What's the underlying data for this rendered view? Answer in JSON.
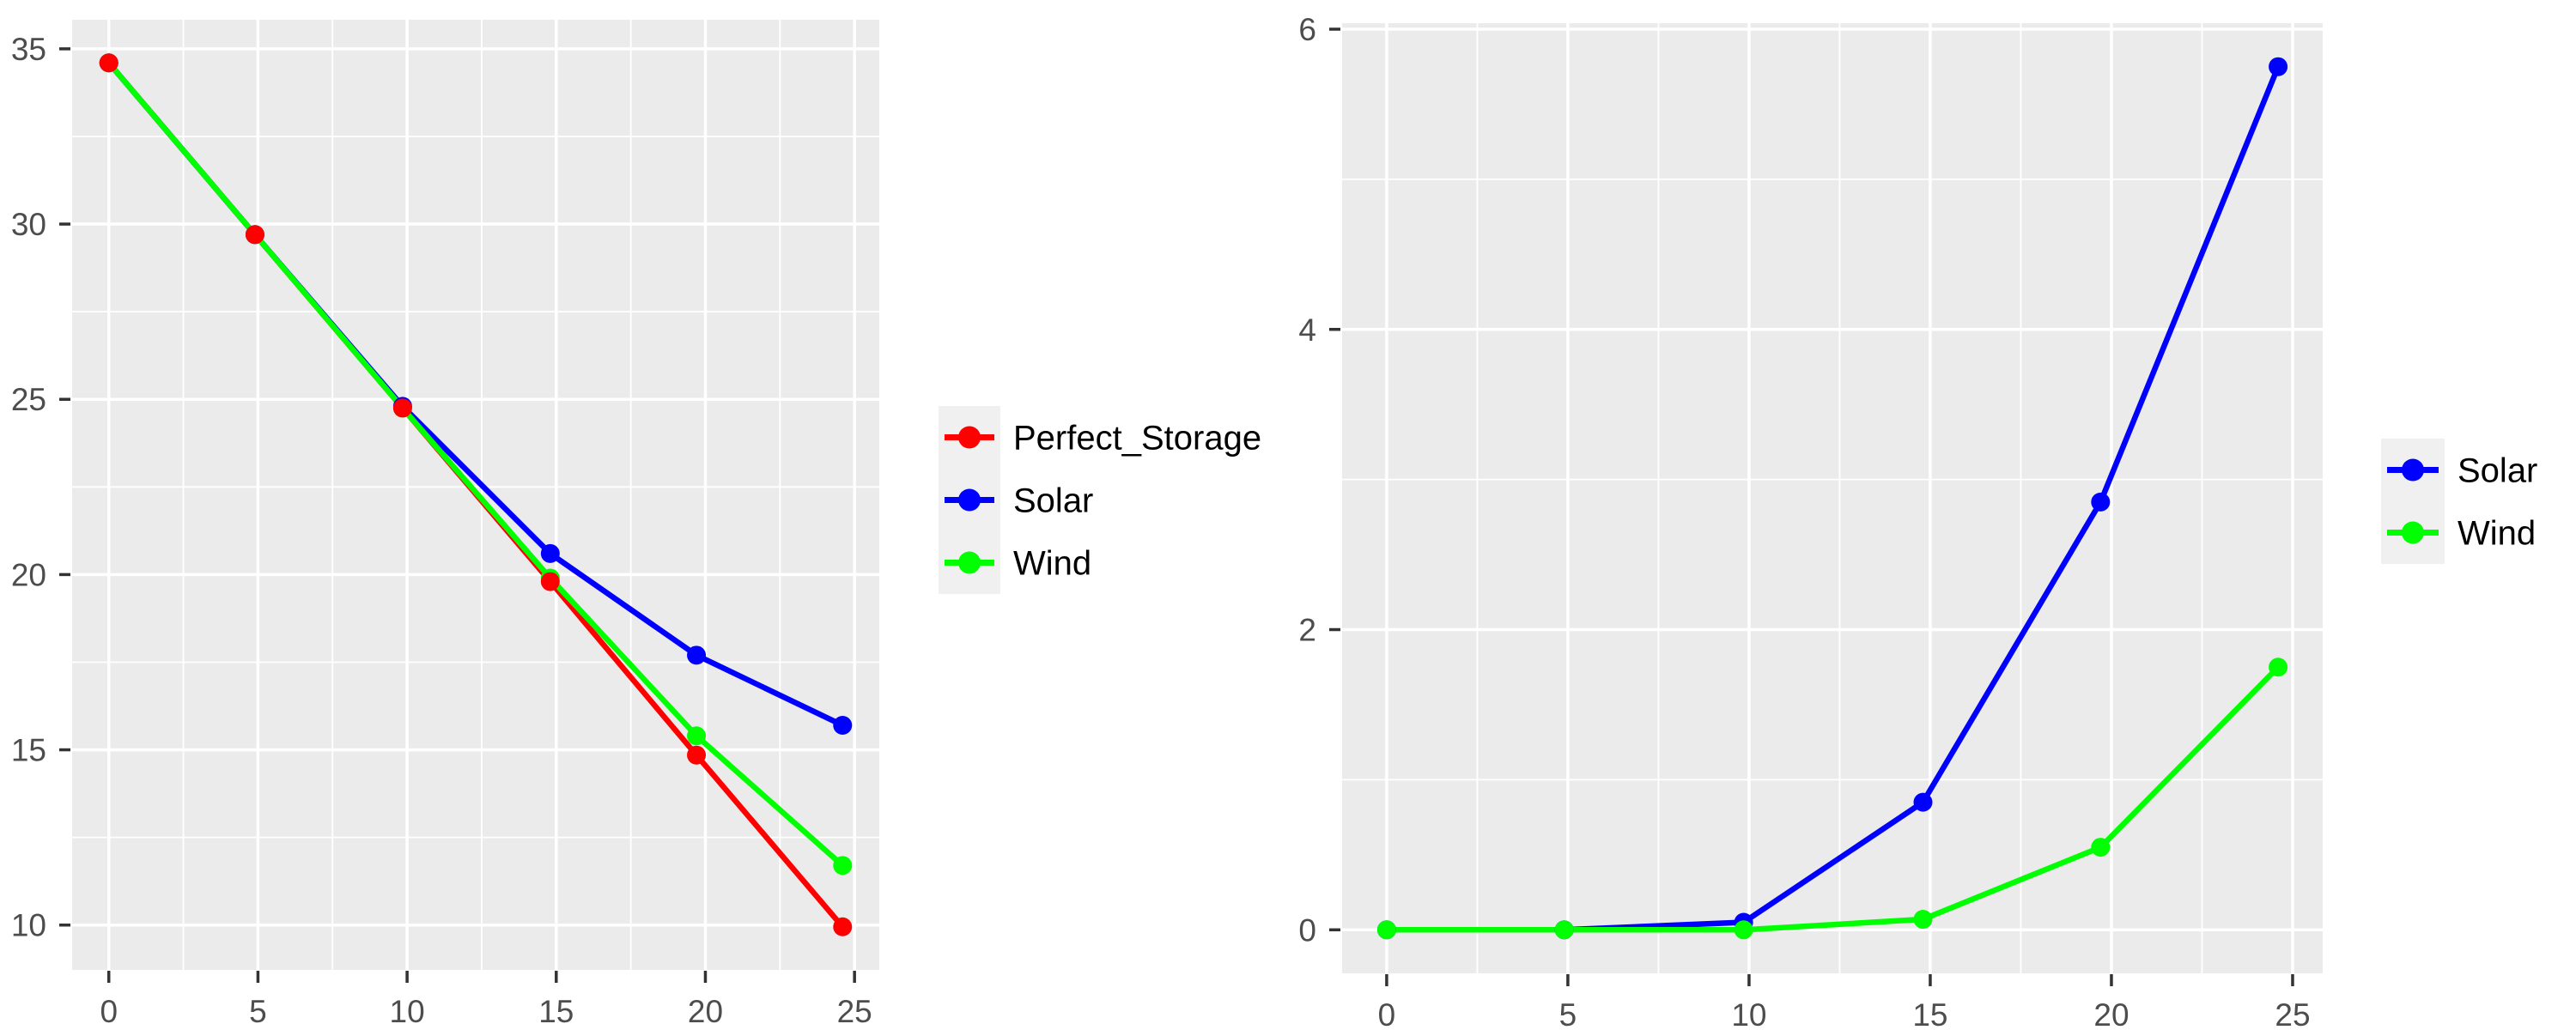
{
  "figure": {
    "title": "",
    "background": "#FFFFFF"
  },
  "theme": {
    "panel_bg": "#EBEBEB",
    "grid_color": "#FFFFFF",
    "tick_mark_color": "#333333",
    "axis_text_color": "#4D4D4D",
    "legend_text_color": "#000000",
    "legend_key_bg": "#F0F0F0"
  },
  "chart_data": [
    {
      "type": "line",
      "title": "",
      "xlabel": "",
      "ylabel": "",
      "x": [
        0,
        4.9,
        9.85,
        14.8,
        19.7,
        24.6
      ],
      "series": [
        {
          "name": "Perfect_Storage",
          "color": "#FF0000",
          "values": [
            34.6,
            29.7,
            24.75,
            19.8,
            14.85,
            9.95
          ]
        },
        {
          "name": "Solar",
          "color": "#0000FF",
          "values": [
            34.6,
            29.7,
            24.8,
            20.6,
            17.7,
            15.7
          ]
        },
        {
          "name": "Wind",
          "color": "#00FF00",
          "values": [
            34.6,
            29.7,
            24.75,
            19.9,
            15.4,
            11.7
          ]
        }
      ],
      "xticks": [
        0,
        5,
        10,
        15,
        20,
        25
      ],
      "yticks": [
        10,
        15,
        20,
        25,
        30,
        35
      ],
      "xlim": [
        -1.23,
        25.83
      ],
      "ylim": [
        8.72,
        35.83
      ],
      "grid": true,
      "legend_position": "right",
      "legend_labels": [
        "Perfect_Storage",
        "Solar",
        "Wind"
      ]
    },
    {
      "type": "line",
      "title": "",
      "xlabel": "",
      "ylabel": "",
      "x": [
        0,
        4.9,
        9.85,
        14.8,
        19.7,
        24.6
      ],
      "series": [
        {
          "name": "Solar",
          "color": "#0000FF",
          "values": [
            0,
            0,
            0.05,
            0.85,
            2.85,
            5.75
          ]
        },
        {
          "name": "Wind",
          "color": "#00FF00",
          "values": [
            0,
            0,
            0,
            0.07,
            0.55,
            1.75
          ]
        }
      ],
      "xticks": [
        0,
        5,
        10,
        15,
        20,
        25
      ],
      "yticks": [
        0,
        2,
        4,
        6
      ],
      "xlim": [
        -1.23,
        25.83
      ],
      "ylim": [
        -0.29,
        6.04
      ],
      "grid": true,
      "legend_position": "right",
      "legend_labels": [
        "Solar",
        "Wind"
      ]
    }
  ]
}
